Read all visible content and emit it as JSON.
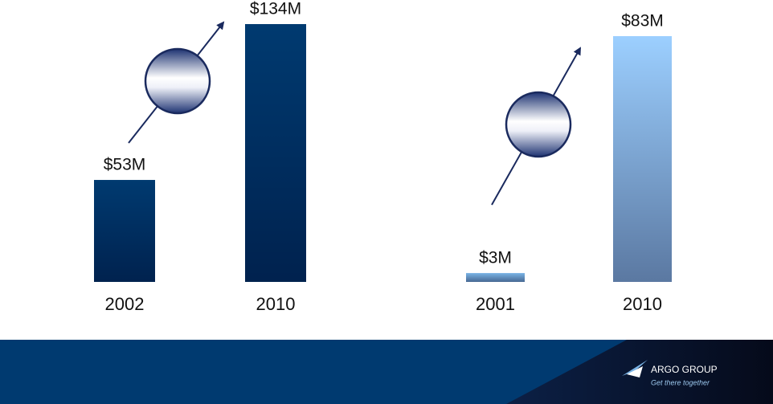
{
  "chart_data": [
    {
      "type": "bar",
      "categories": [
        "2002",
        "2010"
      ],
      "values": [
        53,
        134
      ],
      "value_labels": [
        "$53M",
        "$134M"
      ],
      "colors": [
        "#003a70",
        "#003a70"
      ]
    },
    {
      "type": "bar",
      "categories": [
        "2001",
        "2010"
      ],
      "values": [
        3,
        83
      ],
      "value_labels": [
        "$3M",
        "$83M"
      ],
      "colors": [
        "#7ab4e6",
        "#9ccfff"
      ]
    }
  ],
  "footer": {
    "logo": "ARGO GROUP",
    "tagline": "Get there together"
  }
}
